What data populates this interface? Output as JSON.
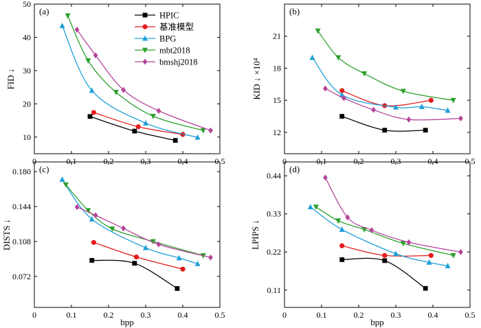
{
  "chart_data": [
    {
      "type": "line",
      "panel_label": "(a)",
      "ylabel": "FID ↓",
      "xlabel": "",
      "xlim": [
        0,
        0.5
      ],
      "ylim": [
        5,
        50
      ],
      "xticks": [
        0,
        0.1,
        0.2,
        0.3,
        0.4,
        0.5
      ],
      "xtick_labels": [
        "0",
        "0.1",
        "0.2",
        "0.3",
        "0.4",
        "0.5"
      ],
      "yticks": [
        10,
        20,
        30,
        40,
        50
      ],
      "ytick_labels": [
        "10",
        "20",
        "30",
        "40",
        "50"
      ],
      "legend_position": "top-right",
      "series": [
        {
          "name": "HPIC",
          "color": "#000000",
          "marker": "square",
          "x": [
            0.15,
            0.27,
            0.38
          ],
          "y": [
            16.2,
            11.8,
            9.0
          ]
        },
        {
          "name": "基准模型",
          "color": "#e41a1c",
          "marker": "circle",
          "x": [
            0.16,
            0.28,
            0.4
          ],
          "y": [
            17.4,
            13.1,
            10.8
          ]
        },
        {
          "name": "BPG",
          "color": "#1e9fd8",
          "marker": "triangle-up",
          "x": [
            0.075,
            0.155,
            0.3,
            0.44
          ],
          "y": [
            43.5,
            24.0,
            14.2,
            9.9
          ]
        },
        {
          "name": "mbt2018",
          "color": "#2ca02c",
          "marker": "triangle-down",
          "x": [
            0.09,
            0.145,
            0.22,
            0.32,
            0.455
          ],
          "y": [
            46.5,
            33.0,
            23.5,
            16.3,
            12.0
          ]
        },
        {
          "name": "bmshj2018",
          "color": "#b5459a",
          "marker": "diamond",
          "x": [
            0.115,
            0.165,
            0.24,
            0.335,
            0.475
          ],
          "y": [
            42.3,
            34.6,
            24.2,
            17.9,
            12.0
          ]
        }
      ]
    },
    {
      "type": "line",
      "panel_label": "(b)",
      "ylabel": "KID ↓ ×10⁴",
      "xlabel": "",
      "xlim": [
        0,
        0.5
      ],
      "ylim": [
        10,
        24
      ],
      "xticks": [
        0,
        0.1,
        0.2,
        0.3,
        0.4,
        0.5
      ],
      "xtick_labels": [
        "0",
        "0.1",
        "0.2",
        "0.3",
        "0.4",
        "0.5"
      ],
      "yticks": [
        12,
        15,
        18,
        21
      ],
      "ytick_labels": [
        "12",
        "15",
        "18",
        "21"
      ],
      "series": [
        {
          "name": "HPIC",
          "color": "#000000",
          "marker": "square",
          "x": [
            0.155,
            0.27,
            0.38
          ],
          "y": [
            13.5,
            12.2,
            12.2
          ]
        },
        {
          "name": "基准模型",
          "color": "#e41a1c",
          "marker": "circle",
          "x": [
            0.155,
            0.27,
            0.395
          ],
          "y": [
            15.9,
            14.5,
            15.0
          ]
        },
        {
          "name": "BPG",
          "color": "#1e9fd8",
          "marker": "triangle-up",
          "x": [
            0.075,
            0.155,
            0.3,
            0.37,
            0.44
          ],
          "y": [
            19.0,
            15.5,
            14.35,
            14.4,
            14.05
          ]
        },
        {
          "name": "mbt2018",
          "color": "#2ca02c",
          "marker": "triangle-down",
          "x": [
            0.09,
            0.145,
            0.215,
            0.32,
            0.455
          ],
          "y": [
            21.5,
            19.0,
            17.5,
            15.85,
            15.0
          ]
        },
        {
          "name": "bmshj2018",
          "color": "#b5459a",
          "marker": "diamond",
          "x": [
            0.11,
            0.16,
            0.24,
            0.335,
            0.475
          ],
          "y": [
            16.1,
            15.2,
            14.1,
            13.2,
            13.3
          ]
        }
      ]
    },
    {
      "type": "line",
      "panel_label": "(c)",
      "ylabel": "DISTS ↓",
      "xlabel": "bpp",
      "xlim": [
        0,
        0.5
      ],
      "ylim": [
        0.04,
        0.19
      ],
      "xticks": [
        0,
        0.1,
        0.2,
        0.3,
        0.4,
        0.5
      ],
      "xtick_labels": [
        "0",
        "0.1",
        "0.2",
        "0.3",
        "0.4",
        "0.5"
      ],
      "yticks": [
        0.072,
        0.108,
        0.144,
        0.18
      ],
      "ytick_labels": [
        "0.072",
        "0.108",
        "0.144",
        "0.180"
      ],
      "series": [
        {
          "name": "HPIC",
          "color": "#000000",
          "marker": "square",
          "x": [
            0.155,
            0.27,
            0.385
          ],
          "y": [
            0.0885,
            0.0855,
            0.0595
          ]
        },
        {
          "name": "基准模型",
          "color": "#e41a1c",
          "marker": "circle",
          "x": [
            0.16,
            0.275,
            0.4
          ],
          "y": [
            0.107,
            0.092,
            0.0795
          ]
        },
        {
          "name": "BPG",
          "color": "#1e9fd8",
          "marker": "triangle-up",
          "x": [
            0.075,
            0.155,
            0.3,
            0.39,
            0.44
          ],
          "y": [
            0.172,
            0.131,
            0.1015,
            0.091,
            0.085
          ]
        },
        {
          "name": "mbt2018",
          "color": "#2ca02c",
          "marker": "triangle-down",
          "x": [
            0.085,
            0.145,
            0.21,
            0.32,
            0.455
          ],
          "y": [
            0.1665,
            0.14,
            0.121,
            0.108,
            0.0935
          ]
        },
        {
          "name": "bmshj2018",
          "color": "#b5459a",
          "marker": "diamond",
          "x": [
            0.115,
            0.165,
            0.24,
            0.335,
            0.475
          ],
          "y": [
            0.1435,
            0.135,
            0.1215,
            0.105,
            0.0915
          ]
        }
      ]
    },
    {
      "type": "line",
      "panel_label": "(d)",
      "ylabel": "LPIPS ↓",
      "xlabel": "bpp",
      "xlim": [
        0,
        0.5
      ],
      "ylim": [
        0.06,
        0.48
      ],
      "xticks": [
        0,
        0.1,
        0.2,
        0.3,
        0.4,
        0.5
      ],
      "xtick_labels": [
        "0",
        "0.1",
        "0.2",
        "0.3",
        "0.4",
        "0.5"
      ],
      "yticks": [
        0.11,
        0.22,
        0.33,
        0.44
      ],
      "ytick_labels": [
        "0.11",
        "0.22",
        "0.33",
        "0.44"
      ],
      "series": [
        {
          "name": "HPIC",
          "color": "#000000",
          "marker": "square",
          "x": [
            0.155,
            0.27,
            0.38
          ],
          "y": [
            0.198,
            0.195,
            0.115
          ]
        },
        {
          "name": "基准模型",
          "color": "#e41a1c",
          "marker": "circle",
          "x": [
            0.155,
            0.27,
            0.395
          ],
          "y": [
            0.238,
            0.21,
            0.21
          ]
        },
        {
          "name": "BPG",
          "color": "#1e9fd8",
          "marker": "triangle-up",
          "x": [
            0.07,
            0.155,
            0.3,
            0.39,
            0.44
          ],
          "y": [
            0.35,
            0.285,
            0.215,
            0.19,
            0.18
          ]
        },
        {
          "name": "mbt2018",
          "color": "#2ca02c",
          "marker": "triangle-down",
          "x": [
            0.085,
            0.145,
            0.215,
            0.32,
            0.455
          ],
          "y": [
            0.35,
            0.31,
            0.285,
            0.245,
            0.21
          ]
        },
        {
          "name": "bmshj2018",
          "color": "#b5459a",
          "marker": "diamond",
          "x": [
            0.11,
            0.17,
            0.235,
            0.335,
            0.475
          ],
          "y": [
            0.435,
            0.32,
            0.283,
            0.248,
            0.22
          ]
        }
      ]
    }
  ]
}
